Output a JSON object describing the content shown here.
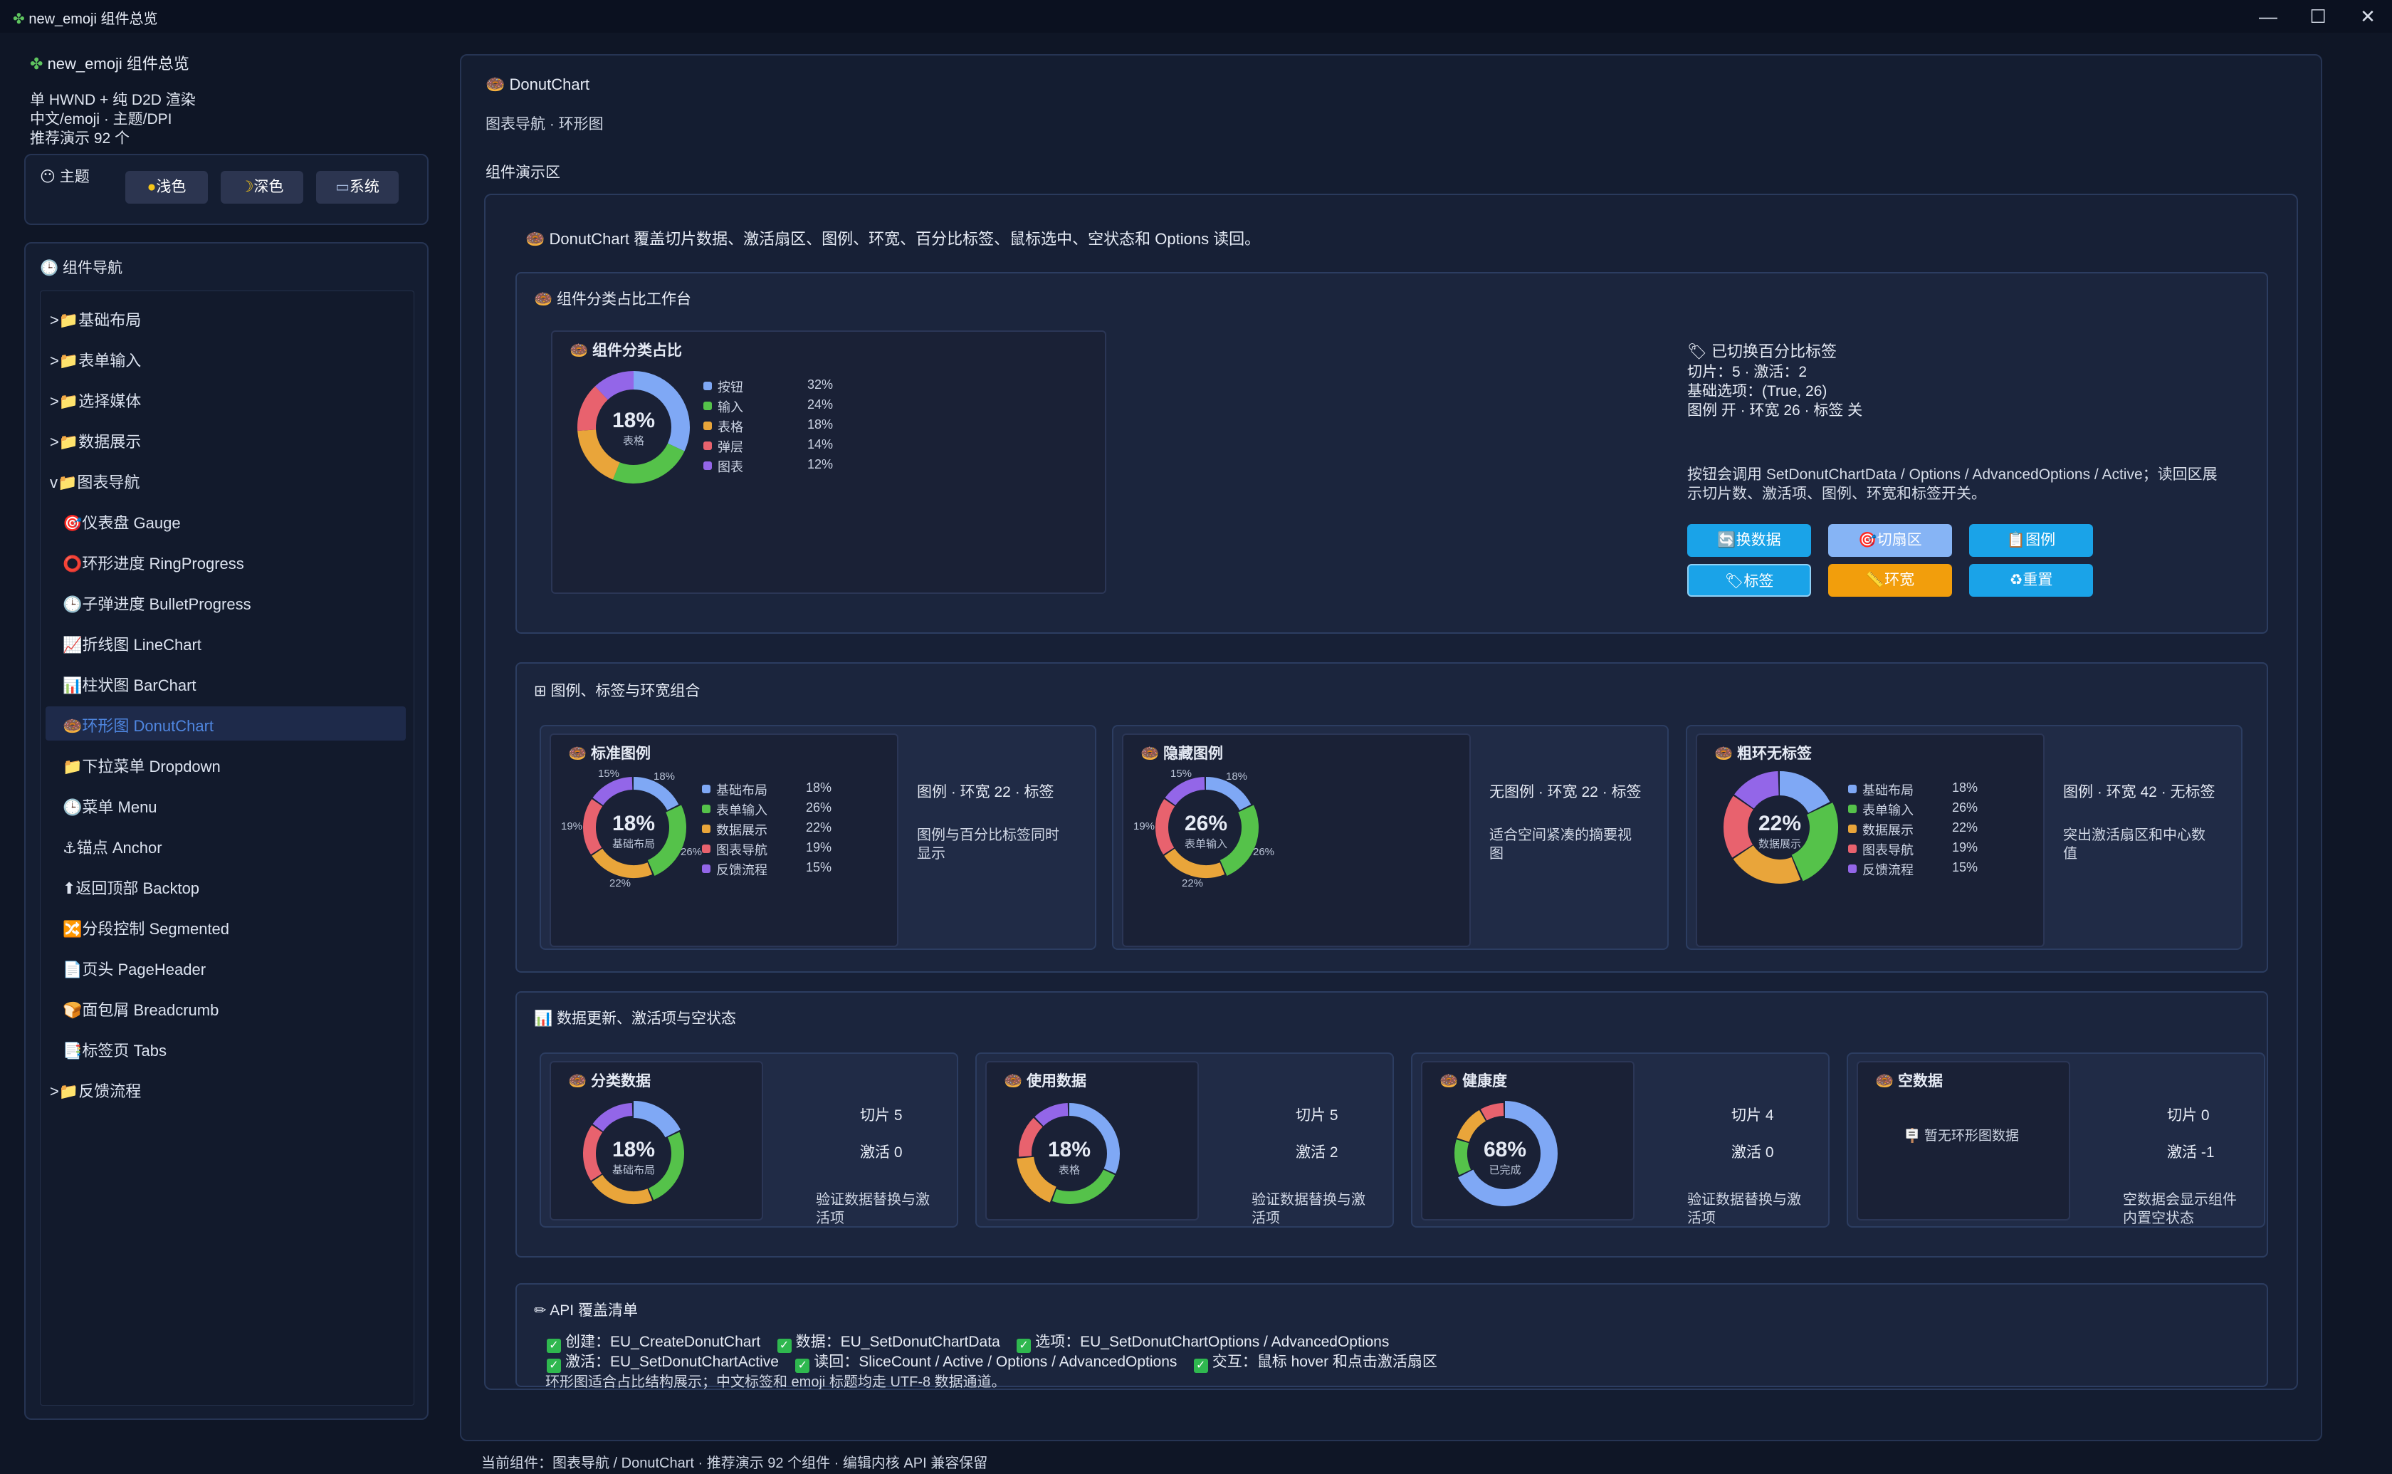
{
  "window": {
    "title": "new_emoji 组件总览",
    "min": "—",
    "max": "☐",
    "close": "✕"
  },
  "sidebar": {
    "app_title": "new_emoji 组件总览",
    "desc1": "单 HWND + 纯 D2D 渲染",
    "desc2": "中文/emoji · 主题/DPI",
    "desc3": "推荐演示 92 个",
    "theme_label": "主题",
    "theme_buttons": [
      "浅色",
      "深色",
      "系统"
    ],
    "nav_title": "组件导航",
    "groups": [
      ">📁基础布局",
      ">📁表单输入",
      ">📁选择媒体",
      ">📁数据展示",
      "v📁图表导航"
    ],
    "items": [
      "🎯仪表盘 Gauge",
      "⭕环形进度 RingProgress",
      "🕒子弹进度 BulletProgress",
      "📈折线图 LineChart",
      "📊柱状图 BarChart",
      "🍩环形图 DonutChart",
      "📁下拉菜单 Dropdown",
      "🕒菜单 Menu",
      "⚓锚点 Anchor",
      "⬆返回顶部 Backtop",
      "🔀分段控制 Segmented",
      "📄页头 PageHeader",
      "🍞面包屑 Breadcrumb",
      "📑标签页 Tabs"
    ],
    "last_group": ">📁反馈流程"
  },
  "main": {
    "title": "DonutChart",
    "subtitle": "图表导航 · 环形图",
    "demo_label": "组件演示区",
    "intro": "DonutChart 覆盖切片数据、激活扇区、图例、环宽、百分比标签、鼠标选中、空状态和 Options 读回。",
    "workbench": {
      "title": "组件分类占比工作台",
      "chart_title": "组件分类占比",
      "center_value": "18%",
      "center_label": "表格",
      "legend": [
        {
          "name": "按钮",
          "pct": "32%"
        },
        {
          "name": "输入",
          "pct": "24%"
        },
        {
          "name": "表格",
          "pct": "18%"
        },
        {
          "name": "弹层",
          "pct": "14%"
        },
        {
          "name": "图表",
          "pct": "12%"
        }
      ],
      "status_title": "已切换百分比标签",
      "status_lines": [
        "切片：5 · 激活：2",
        "基础选项：(True, 26)",
        "图例 开 · 环宽 26 · 标签 关"
      ],
      "desc": [
        "按钮会调用 SetDonutChartData / Options / AdvancedOptions / Active；读回区展",
        "示切片数、激活项、图例、环宽和标签开关。"
      ],
      "buttons": [
        "🔄换数据",
        "🎯切扇区",
        "📋图例",
        "🏷标签",
        "📏环宽",
        "♻重置"
      ]
    },
    "legend_section": {
      "title": "图例、标签与环宽组合",
      "cards": [
        {
          "title": "标准图例",
          "center": "18%",
          "center_label": "基础布局",
          "info": "图例 · 环宽 22 · 标签",
          "desc": [
            "图例与百分比标签同时",
            "显示"
          ]
        },
        {
          "title": "隐藏图例",
          "center": "26%",
          "center_label": "表单输入",
          "info": "无图例 · 环宽 22 · 标签",
          "desc": [
            "适合空间紧凑的摘要视",
            "图"
          ]
        },
        {
          "title": "粗环无标签",
          "center": "22%",
          "center_label": "数据展示",
          "info": "图例 · 环宽 42 · 无标签",
          "desc": [
            "突出激活扇区和中心数",
            "值"
          ]
        }
      ],
      "legend": [
        {
          "name": "基础布局",
          "pct": "18%"
        },
        {
          "name": "表单输入",
          "pct": "26%"
        },
        {
          "name": "数据展示",
          "pct": "22%"
        },
        {
          "name": "图表导航",
          "pct": "19%"
        },
        {
          "name": "反馈流程",
          "pct": "15%"
        }
      ],
      "labels": [
        "15%",
        "18%",
        "19%",
        "26%",
        "22%"
      ]
    },
    "data_section": {
      "title": "数据更新、激活项与空状态",
      "cards": [
        {
          "title": "分类数据",
          "center": "18%",
          "center_label": "基础布局",
          "slices": "切片 5",
          "active": "激活 0",
          "desc": [
            "验证数据替换与激",
            "活项"
          ]
        },
        {
          "title": "使用数据",
          "center": "18%",
          "center_label": "表格",
          "slices": "切片 5",
          "active": "激活 2",
          "desc": [
            "验证数据替换与激",
            "活项"
          ]
        },
        {
          "title": "健康度",
          "center": "68%",
          "center_label": "已完成",
          "slices": "切片 4",
          "active": "激活 0",
          "desc": [
            "验证数据替换与激",
            "活项"
          ]
        },
        {
          "title": "空数据",
          "empty": "🪧 暂无环形图数据",
          "slices": "切片 0",
          "active": "激活 -1",
          "desc": [
            "空数据会显示组件",
            "内置空状态"
          ]
        }
      ]
    },
    "api": {
      "title": "API 覆盖清单",
      "row1": [
        "创建：EU_CreateDonutChart",
        "数据：EU_SetDonutChartData",
        "选项：EU_SetDonutChartOptions / AdvancedOptions"
      ],
      "row2": [
        "激活：EU_SetDonutChartActive",
        "读回：SliceCount / Active / Options / AdvancedOptions",
        "交互：鼠标 hover 和点击激活扇区"
      ],
      "note": "环形图适合占比结构展示；中文标签和 emoji 标题均走 UTF-8 数据通道。"
    }
  },
  "statusbar": "当前组件：图表导航 / DonutChart · 推荐演示 92 个组件 · 编辑内核 API 兼容保留",
  "colors": {
    "blue": "#7fa8f5",
    "green": "#55c24a",
    "orange": "#e9a53a",
    "red": "#e8626e",
    "purple": "#9366e8",
    "accent": "#1aa3e8"
  }
}
